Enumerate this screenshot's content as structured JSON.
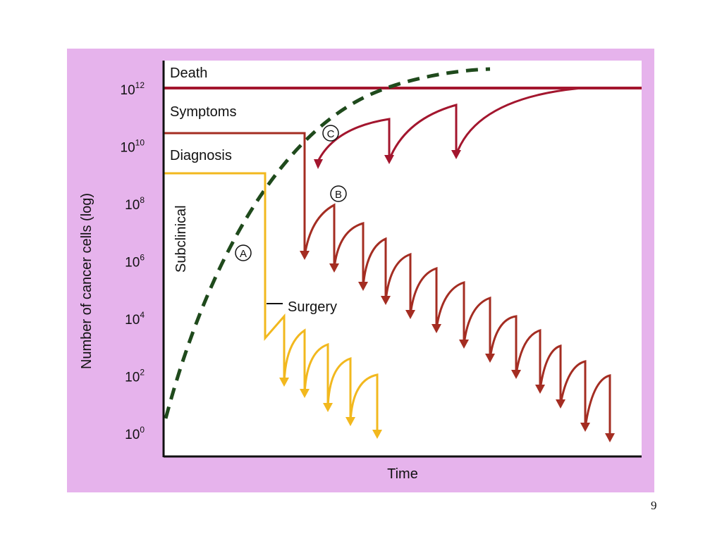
{
  "figure": {
    "y_axis_title": "Number of cancer cells (log)",
    "x_axis_title": "Time",
    "y_ticks": [
      {
        "base": "10",
        "exp": "0"
      },
      {
        "base": "10",
        "exp": "2"
      },
      {
        "base": "10",
        "exp": "4"
      },
      {
        "base": "10",
        "exp": "6"
      },
      {
        "base": "10",
        "exp": "8"
      },
      {
        "base": "10",
        "exp": "10"
      },
      {
        "base": "10",
        "exp": "12"
      }
    ],
    "regions": {
      "death": "Death",
      "symptoms": "Symptoms",
      "diagnosis": "Diagnosis",
      "subclinical": "Subclinical"
    },
    "annotations": {
      "surgery": "Surgery",
      "a": "A",
      "b": "B",
      "c": "C"
    },
    "colors": {
      "background": "#e6b3ec",
      "plot": "#ffffff",
      "death_line": "#a3162e",
      "growth_curve": "#1f4a1c",
      "curve_a": "#f2b81e",
      "curve_b": "#a42d22",
      "curve_c": "#a3162e"
    }
  },
  "page_number": "9"
}
